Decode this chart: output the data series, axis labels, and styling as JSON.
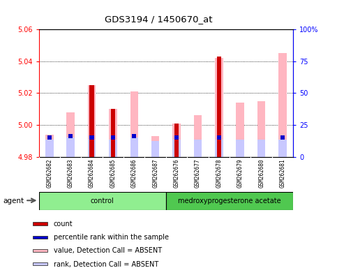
{
  "title": "GDS3194 / 1450670_at",
  "samples": [
    "GSM262682",
    "GSM262683",
    "GSM262684",
    "GSM262685",
    "GSM262686",
    "GSM262687",
    "GSM262676",
    "GSM262677",
    "GSM262678",
    "GSM262679",
    "GSM262680",
    "GSM262681"
  ],
  "value_absent": [
    4.994,
    5.008,
    5.025,
    5.01,
    5.021,
    4.993,
    5.001,
    5.006,
    5.042,
    5.014,
    5.015,
    5.045
  ],
  "rank_absent": [
    4.991,
    4.992,
    4.991,
    4.991,
    4.992,
    4.99,
    4.991,
    4.991,
    4.991,
    4.991,
    4.991,
    4.991
  ],
  "count_val": [
    0,
    0,
    5.025,
    5.01,
    0,
    0,
    5.001,
    0,
    5.043,
    0,
    0,
    0
  ],
  "pct_rank_val": [
    4.992,
    4.993,
    4.992,
    4.992,
    4.993,
    0,
    4.992,
    0,
    4.992,
    0,
    0,
    4.992
  ],
  "ylim": [
    4.98,
    5.06
  ],
  "yticks_left": [
    4.98,
    5.0,
    5.02,
    5.04,
    5.06
  ],
  "yticks_right": [
    0,
    25,
    50,
    75,
    100
  ],
  "color_count": "#cc0000",
  "color_pct": "#0000cc",
  "color_value_absent": "#FFB6C1",
  "color_rank_absent": "#c8c8ff",
  "bg_gray": "#d3d3d3",
  "bg_green_ctrl": "#90EE90",
  "bg_green_medx": "#50C850",
  "legend_items": [
    {
      "color": "#cc0000",
      "label": "count"
    },
    {
      "color": "#0000cc",
      "label": "percentile rank within the sample"
    },
    {
      "color": "#FFB6C1",
      "label": "value, Detection Call = ABSENT"
    },
    {
      "color": "#c8c8ff",
      "label": "rank, Detection Call = ABSENT"
    }
  ]
}
